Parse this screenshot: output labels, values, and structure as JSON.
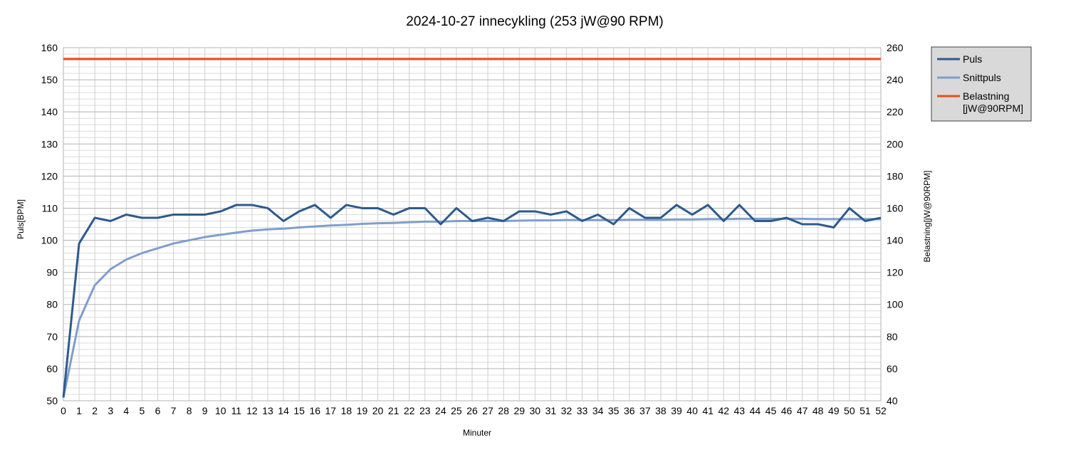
{
  "chart_data": {
    "type": "line",
    "title": "2024-10-27 innecykling (253 jW@90 RPM)",
    "xlabel": "Minuter",
    "ylabel": "Puls[BPM]",
    "y2label": "Belastning[jW@90RPM]",
    "xlim": [
      0,
      52
    ],
    "ylim": [
      50,
      160
    ],
    "y2lim": [
      40,
      260
    ],
    "y_ticks": [
      50,
      60,
      70,
      80,
      90,
      100,
      110,
      120,
      130,
      140,
      150,
      160
    ],
    "y2_ticks": [
      40,
      60,
      80,
      100,
      120,
      140,
      160,
      180,
      200,
      220,
      240,
      260
    ],
    "x": [
      0,
      1,
      2,
      3,
      4,
      5,
      6,
      7,
      8,
      9,
      10,
      11,
      12,
      13,
      14,
      15,
      16,
      17,
      18,
      19,
      20,
      21,
      22,
      23,
      24,
      25,
      26,
      27,
      28,
      29,
      30,
      31,
      32,
      33,
      34,
      35,
      36,
      37,
      38,
      39,
      40,
      41,
      42,
      43,
      44,
      45,
      46,
      47,
      48,
      49,
      50,
      51,
      52
    ],
    "grid": true,
    "legend_position": "right",
    "series": [
      {
        "name": "Puls",
        "axis": "left",
        "color": "#2e5a8c",
        "values": [
          51,
          99,
          107,
          106,
          108,
          107,
          107,
          108,
          108,
          108,
          109,
          111,
          111,
          110,
          106,
          109,
          111,
          107,
          111,
          110,
          110,
          108,
          110,
          110,
          105,
          110,
          106,
          107,
          106,
          109,
          109,
          108,
          109,
          106,
          108,
          105,
          110,
          107,
          107,
          111,
          108,
          111,
          106,
          111,
          106,
          106,
          107,
          105,
          105,
          104,
          110,
          106,
          107
        ]
      },
      {
        "name": "Snittpuls",
        "axis": "left",
        "color": "#7f9fcc",
        "values": [
          51,
          75,
          86,
          91,
          94,
          96,
          97.5,
          99,
          100,
          101,
          101.7,
          102.4,
          103,
          103.4,
          103.6,
          104,
          104.3,
          104.6,
          104.8,
          105.1,
          105.3,
          105.4,
          105.6,
          105.8,
          105.8,
          106,
          106,
          106,
          106,
          106.1,
          106.2,
          106.2,
          106.3,
          106.3,
          106.3,
          106.3,
          106.4,
          106.4,
          106.4,
          106.5,
          106.5,
          106.6,
          106.6,
          106.7,
          106.7,
          106.7,
          106.7,
          106.7,
          106.6,
          106.6,
          106.6,
          106.6,
          106.6
        ]
      },
      {
        "name": "Belastning\n[jW@90RPM]",
        "axis": "right",
        "color": "#ee4a21",
        "values": [
          253,
          253,
          253,
          253,
          253,
          253,
          253,
          253,
          253,
          253,
          253,
          253,
          253,
          253,
          253,
          253,
          253,
          253,
          253,
          253,
          253,
          253,
          253,
          253,
          253,
          253,
          253,
          253,
          253,
          253,
          253,
          253,
          253,
          253,
          253,
          253,
          253,
          253,
          253,
          253,
          253,
          253,
          253,
          253,
          253,
          253,
          253,
          253,
          253,
          253,
          253,
          253,
          253
        ]
      }
    ]
  }
}
